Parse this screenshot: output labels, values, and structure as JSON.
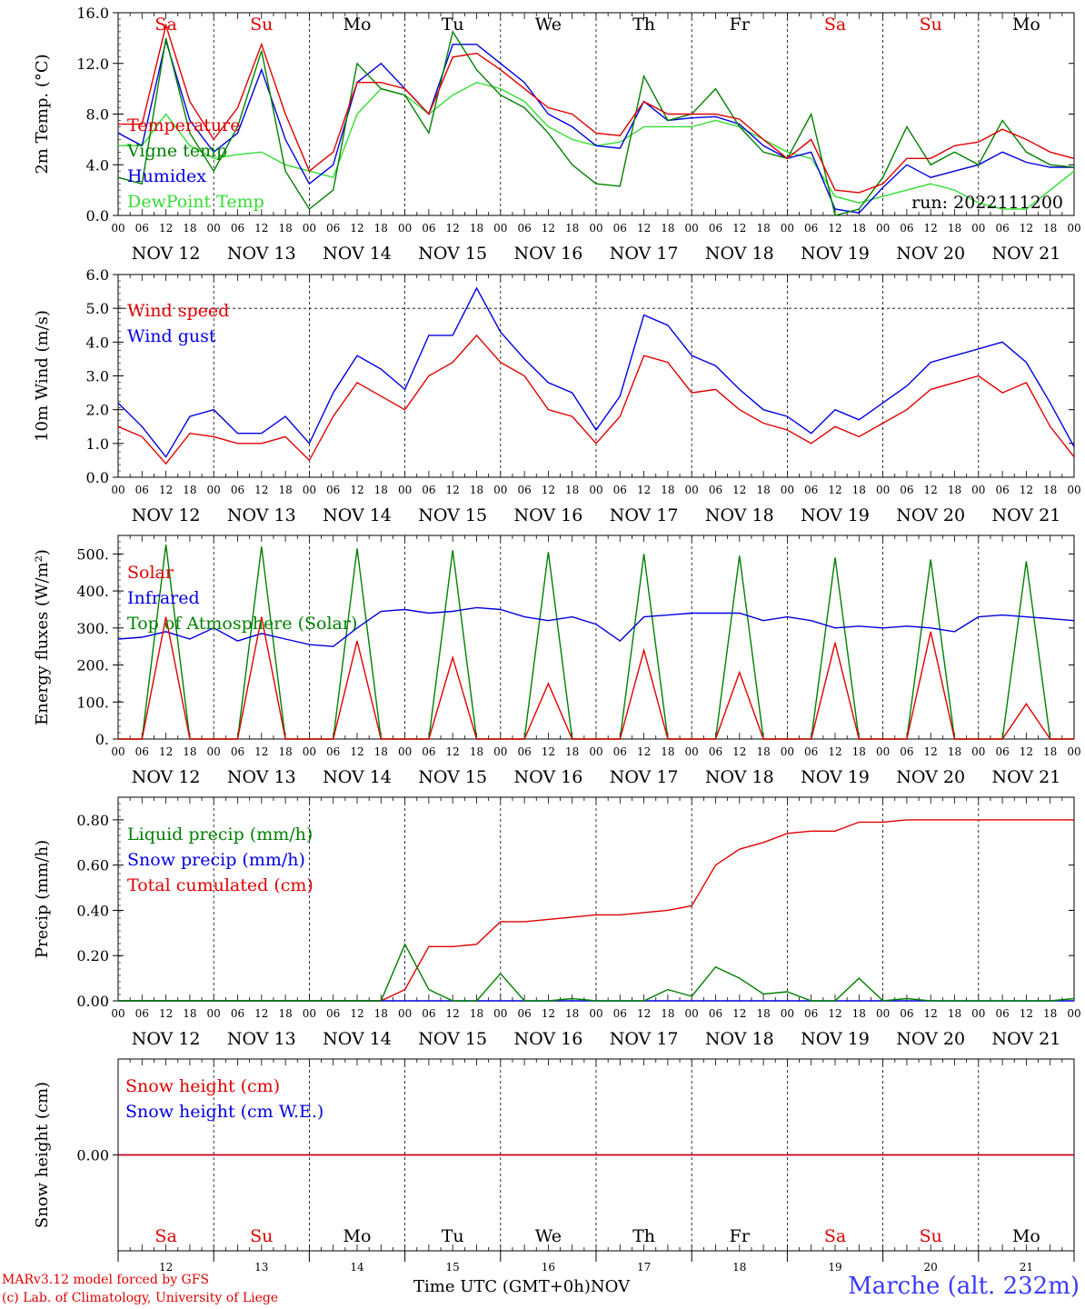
{
  "run_label": "run: 2022111200",
  "time_axis": {
    "hour_ticks": [
      "00",
      "06",
      "12",
      "18"
    ],
    "date_labels": [
      "NOV 12",
      "NOV 13",
      "NOV 14",
      "NOV 15",
      "NOV 16",
      "NOV 17",
      "NOV 18",
      "NOV 19",
      "NOV 20",
      "NOV 21"
    ],
    "weekdays": [
      "Sa",
      "Su",
      "Mo",
      "Tu",
      "We",
      "Th",
      "Fr",
      "Sa",
      "Su",
      "Mo"
    ],
    "weekend_color": "#e00000",
    "day_numbers": [
      "12",
      "13",
      "14",
      "15",
      "16",
      "17",
      "18",
      "19",
      "20",
      "21"
    ],
    "month_label": "NOV",
    "title": "Time UTC (GMT+0h)"
  },
  "footer": {
    "credit_line1": "MARv3.12 model forced by GFS",
    "credit_line2": "(c) Lab. of Climatology, University of Liege",
    "station": "Marche (alt. 232m)"
  },
  "chart_data": [
    {
      "type": "line",
      "ylabel": "2m Temp. (°C)",
      "ylim": [
        0,
        16
      ],
      "yticks": [
        "0.0",
        "4.0",
        "8.0",
        "12.0",
        "16.0"
      ],
      "x": [
        0,
        6,
        12,
        18,
        24,
        30,
        36,
        42,
        48,
        54,
        60,
        66,
        72,
        78,
        84,
        90,
        96,
        102,
        108,
        114,
        120,
        126,
        132,
        138,
        144,
        150,
        156,
        162,
        168,
        174,
        180,
        186,
        192,
        198,
        204,
        210,
        216,
        222,
        228,
        234,
        240
      ],
      "series": [
        {
          "name": "Temperature",
          "color": "#e00000",
          "values": [
            7.2,
            7.2,
            15.0,
            9.0,
            6.0,
            8.5,
            13.5,
            8.0,
            3.5,
            5.0,
            10.5,
            10.5,
            10.0,
            8.0,
            12.5,
            12.8,
            11.5,
            10.0,
            8.5,
            8.0,
            6.5,
            6.3,
            9.0,
            8.0,
            8.0,
            8.0,
            7.6,
            6.0,
            4.5,
            6.0,
            2.0,
            1.8,
            2.5,
            4.5,
            4.5,
            5.5,
            5.8,
            6.8,
            6.0,
            5.0,
            4.5
          ]
        },
        {
          "name": "Vigne temp",
          "color": "#008000",
          "values": [
            3.0,
            2.5,
            14.0,
            6.5,
            3.5,
            7.0,
            13.0,
            3.5,
            0.5,
            2.0,
            12.0,
            10.0,
            9.5,
            6.5,
            14.5,
            11.5,
            9.5,
            8.5,
            6.5,
            4.0,
            2.5,
            2.3,
            11.0,
            7.5,
            8.0,
            10.0,
            7.0,
            5.0,
            4.5,
            8.0,
            0.0,
            0.5,
            3.0,
            7.0,
            4.0,
            5.0,
            4.0,
            7.5,
            5.0,
            4.0,
            3.8
          ]
        },
        {
          "name": "Humidex",
          "color": "#0000e0",
          "values": [
            6.5,
            5.5,
            13.8,
            7.5,
            5.0,
            6.5,
            11.5,
            6.0,
            2.5,
            4.0,
            10.5,
            12.0,
            10.0,
            8.0,
            13.5,
            13.5,
            12.0,
            10.5,
            8.0,
            7.0,
            5.5,
            5.3,
            9.0,
            7.5,
            7.7,
            7.8,
            7.2,
            5.5,
            4.5,
            5.0,
            0.5,
            0.2,
            2.2,
            4.0,
            3.0,
            3.5,
            4.0,
            5.0,
            4.2,
            3.8,
            3.8
          ]
        },
        {
          "name": "DewPoint Temp",
          "color": "#33dd33",
          "values": [
            5.5,
            5.5,
            8.0,
            5.5,
            4.5,
            4.8,
            5.0,
            4.0,
            3.5,
            3.0,
            8.0,
            10.0,
            9.5,
            8.0,
            9.5,
            10.5,
            10.0,
            9.0,
            7.0,
            6.0,
            5.5,
            5.8,
            7.0,
            7.0,
            7.0,
            7.5,
            7.0,
            6.0,
            5.0,
            4.5,
            1.5,
            1.0,
            1.5,
            2.0,
            2.5,
            2.0,
            1.0,
            0.5,
            0.5,
            2.0,
            3.5
          ]
        }
      ]
    },
    {
      "type": "line",
      "ylabel": "10m Wind (m/s)",
      "ylim": [
        0,
        6
      ],
      "yticks": [
        "0.0",
        "1.0",
        "2.0",
        "3.0",
        "4.0",
        "5.0",
        "6.0"
      ],
      "x": [
        0,
        6,
        12,
        18,
        24,
        30,
        36,
        42,
        48,
        54,
        60,
        66,
        72,
        78,
        84,
        90,
        96,
        102,
        108,
        114,
        120,
        126,
        132,
        138,
        144,
        150,
        156,
        162,
        168,
        174,
        180,
        186,
        192,
        198,
        204,
        210,
        216,
        222,
        228,
        234,
        240
      ],
      "series": [
        {
          "name": "Wind speed",
          "color": "#e00000",
          "values": [
            1.5,
            1.2,
            0.4,
            1.3,
            1.2,
            1.0,
            1.0,
            1.2,
            0.5,
            1.8,
            2.8,
            2.4,
            2.0,
            3.0,
            3.4,
            4.2,
            3.4,
            3.0,
            2.0,
            1.8,
            1.0,
            1.8,
            3.6,
            3.4,
            2.5,
            2.6,
            2.0,
            1.6,
            1.4,
            1.0,
            1.5,
            1.2,
            1.6,
            2.0,
            2.6,
            2.8,
            3.0,
            2.5,
            2.8,
            1.5,
            0.6
          ]
        },
        {
          "name": "Wind gust",
          "color": "#0000e0",
          "values": [
            2.2,
            1.5,
            0.6,
            1.8,
            2.0,
            1.3,
            1.3,
            1.8,
            1.0,
            2.5,
            3.6,
            3.2,
            2.6,
            4.2,
            4.2,
            5.6,
            4.3,
            3.5,
            2.8,
            2.5,
            1.4,
            2.4,
            4.8,
            4.5,
            3.6,
            3.3,
            2.6,
            2.0,
            1.8,
            1.3,
            2.0,
            1.7,
            2.2,
            2.7,
            3.4,
            3.6,
            3.8,
            4.0,
            3.4,
            2.2,
            0.9
          ]
        }
      ]
    },
    {
      "type": "line",
      "ylabel": "Energy fluxes (W/m²)",
      "ylim": [
        0,
        550
      ],
      "yticks": [
        "0.",
        "100.",
        "200.",
        "300.",
        "400.",
        "500."
      ],
      "x": [
        0,
        6,
        12,
        18,
        24,
        30,
        36,
        42,
        48,
        54,
        60,
        66,
        72,
        78,
        84,
        90,
        96,
        102,
        108,
        114,
        120,
        126,
        132,
        138,
        144,
        150,
        156,
        162,
        168,
        174,
        180,
        186,
        192,
        198,
        204,
        210,
        216,
        222,
        228,
        234,
        240
      ],
      "series": [
        {
          "name": "Solar",
          "color": "#e00000",
          "values": [
            0,
            0,
            330,
            0,
            0,
            0,
            330,
            0,
            0,
            0,
            265,
            0,
            0,
            0,
            220,
            0,
            0,
            0,
            150,
            0,
            0,
            0,
            240,
            0,
            0,
            0,
            180,
            0,
            0,
            0,
            260,
            0,
            0,
            0,
            290,
            0,
            0,
            0,
            95,
            0,
            0
          ]
        },
        {
          "name": "Infrared",
          "color": "#0000e0",
          "values": [
            270,
            275,
            290,
            270,
            300,
            265,
            285,
            270,
            255,
            250,
            300,
            345,
            350,
            340,
            345,
            355,
            350,
            330,
            320,
            330,
            310,
            265,
            330,
            335,
            340,
            340,
            340,
            320,
            330,
            320,
            300,
            305,
            300,
            305,
            300,
            290,
            330,
            335,
            330,
            325,
            320
          ]
        },
        {
          "name": "Top of Atmosphere (Solar)",
          "color": "#008000",
          "values": [
            0,
            0,
            525,
            0,
            0,
            0,
            520,
            0,
            0,
            0,
            515,
            0,
            0,
            0,
            510,
            0,
            0,
            0,
            505,
            0,
            0,
            0,
            500,
            0,
            0,
            0,
            495,
            0,
            0,
            0,
            490,
            0,
            0,
            0,
            485,
            0,
            0,
            0,
            480,
            0,
            0
          ]
        }
      ]
    },
    {
      "type": "line",
      "ylabel": "Precip (mm/h)",
      "ylim": [
        0,
        0.9
      ],
      "yticks": [
        "0.00",
        "0.20",
        "0.40",
        "0.60",
        "0.80"
      ],
      "x": [
        0,
        6,
        12,
        18,
        24,
        30,
        36,
        42,
        48,
        54,
        60,
        66,
        72,
        78,
        84,
        90,
        96,
        102,
        108,
        114,
        120,
        126,
        132,
        138,
        144,
        150,
        156,
        162,
        168,
        174,
        180,
        186,
        192,
        198,
        204,
        210,
        216,
        222,
        228,
        234,
        240
      ],
      "series": [
        {
          "name": "Liquid precip (mm/h)",
          "color": "#008000",
          "values": [
            0,
            0,
            0,
            0,
            0,
            0,
            0,
            0,
            0,
            0,
            0,
            0,
            0.25,
            0.05,
            0,
            0,
            0.12,
            0,
            0,
            0.01,
            0,
            0,
            0,
            0.05,
            0.02,
            0.15,
            0.1,
            0.03,
            0.04,
            0,
            0,
            0.1,
            0,
            0.01,
            0,
            0,
            0,
            0,
            0,
            0,
            0.01
          ]
        },
        {
          "name": "Snow precip (mm/h)",
          "color": "#0000e0",
          "values": [
            0,
            0,
            0,
            0,
            0,
            0,
            0,
            0,
            0,
            0,
            0,
            0,
            0,
            0,
            0,
            0,
            0,
            0,
            0,
            0,
            0,
            0,
            0,
            0,
            0,
            0,
            0,
            0,
            0,
            0,
            0,
            0,
            0,
            0,
            0,
            0,
            0,
            0,
            0,
            0,
            0
          ]
        },
        {
          "name": "Total cumulated (cm)",
          "color": "#e00000",
          "values": [
            0,
            0,
            0,
            0,
            0,
            0,
            0,
            0,
            0,
            0,
            0,
            0,
            0.05,
            0.24,
            0.24,
            0.25,
            0.35,
            0.35,
            0.36,
            0.37,
            0.38,
            0.38,
            0.39,
            0.4,
            0.42,
            0.6,
            0.67,
            0.7,
            0.74,
            0.75,
            0.75,
            0.79,
            0.79,
            0.8,
            0.8,
            0.8,
            0.8,
            0.8,
            0.8,
            0.8,
            0.8
          ]
        }
      ]
    },
    {
      "type": "line",
      "ylabel": "Snow height (cm)",
      "ylim": [
        -1,
        1
      ],
      "yticks": [
        "0.00"
      ],
      "x": [
        0,
        240
      ],
      "series": [
        {
          "name": "Snow height (cm)",
          "color": "#e00000",
          "values": [
            0,
            0
          ]
        },
        {
          "name": "Snow height (cm W.E.)",
          "color": "#0000e0",
          "values": [
            0,
            0
          ]
        }
      ]
    }
  ]
}
